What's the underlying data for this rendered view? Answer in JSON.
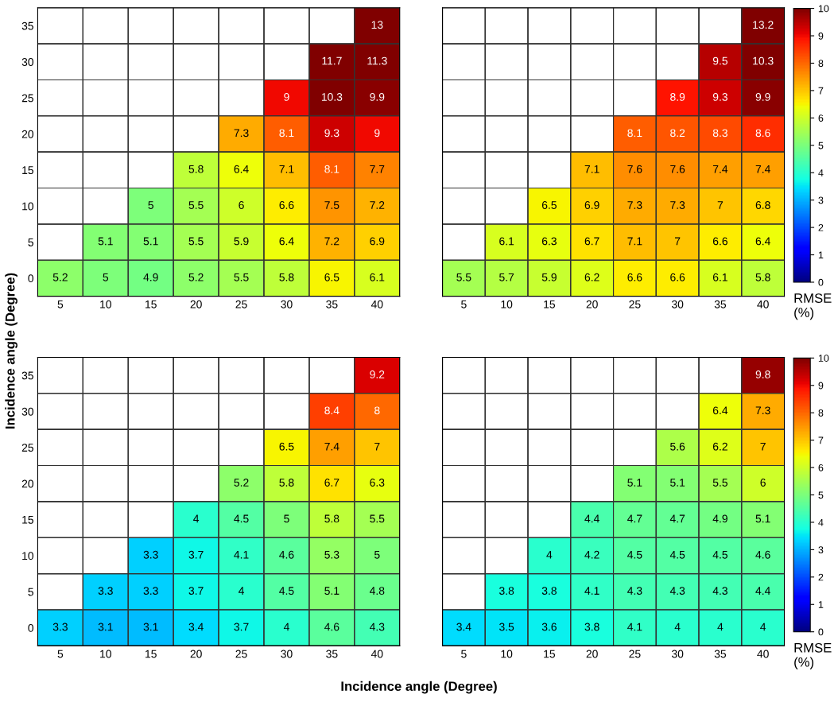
{
  "chart_data": [
    {
      "type": "heatmap",
      "categories": [
        "5",
        "10",
        "15",
        "20",
        "25",
        "30",
        "35",
        "40"
      ],
      "y_categories": [
        "35",
        "30",
        "25",
        "20",
        "15",
        "10",
        "5",
        "0"
      ],
      "cells": [
        [
          null,
          null,
          null,
          null,
          null,
          null,
          null,
          13
        ],
        [
          null,
          null,
          null,
          null,
          null,
          null,
          11.7,
          11.3
        ],
        [
          null,
          null,
          null,
          null,
          null,
          9,
          10.3,
          9.9
        ],
        [
          null,
          null,
          null,
          null,
          7.3,
          8.1,
          9.3,
          9
        ],
        [
          null,
          null,
          null,
          5.8,
          6.4,
          7.1,
          8.1,
          7.7
        ],
        [
          null,
          null,
          5,
          5.5,
          6,
          6.6,
          7.5,
          7.2
        ],
        [
          null,
          5.1,
          5.1,
          5.5,
          5.9,
          6.4,
          7.2,
          6.9
        ],
        [
          5.2,
          5,
          4.9,
          5.2,
          5.5,
          5.8,
          6.5,
          6.1
        ]
      ],
      "data_labels": true
    },
    {
      "type": "heatmap",
      "categories": [
        "5",
        "10",
        "15",
        "20",
        "25",
        "30",
        "35",
        "40"
      ],
      "y_categories": [
        "35",
        "30",
        "25",
        "20",
        "15",
        "10",
        "5",
        "0"
      ],
      "clim": [
        0,
        10
      ],
      "cticks": [
        0,
        1,
        2,
        3,
        4,
        5,
        6,
        7,
        8,
        9,
        10
      ],
      "clabel": "RMSE\n(%)",
      "tick_labels": "x",
      "cells": [
        [
          null,
          null,
          null,
          null,
          null,
          null,
          null,
          13.2
        ],
        [
          null,
          null,
          null,
          null,
          null,
          null,
          9.5,
          10.3
        ],
        [
          null,
          null,
          null,
          null,
          null,
          8.9,
          9.3,
          9.9
        ],
        [
          null,
          null,
          null,
          null,
          8.1,
          8.2,
          8.3,
          8.6
        ],
        [
          null,
          null,
          null,
          7.1,
          7.6,
          7.6,
          7.4,
          7.4
        ],
        [
          null,
          null,
          6.5,
          6.9,
          7.3,
          7.3,
          7,
          6.8
        ],
        [
          null,
          6.1,
          6.3,
          6.7,
          7.1,
          7,
          6.6,
          6.4
        ],
        [
          5.5,
          5.7,
          5.9,
          6.2,
          6.6,
          6.6,
          6.1,
          5.8
        ]
      ],
      "data_labels": true
    },
    {
      "type": "heatmap",
      "categories": [
        "5",
        "10",
        "15",
        "20",
        "25",
        "30",
        "35",
        "40"
      ],
      "y_categories": [
        "35",
        "30",
        "25",
        "20",
        "15",
        "10",
        "5",
        "0"
      ],
      "xlabel": "Incidence angle (Degree)",
      "ylabel": "Incidence angle (Degree)",
      "cells": [
        [
          null,
          null,
          null,
          null,
          null,
          null,
          null,
          9.2
        ],
        [
          null,
          null,
          null,
          null,
          null,
          null,
          8.4,
          8
        ],
        [
          null,
          null,
          null,
          null,
          null,
          6.5,
          7.4,
          7
        ],
        [
          null,
          null,
          null,
          null,
          5.2,
          5.8,
          6.7,
          6.3
        ],
        [
          null,
          null,
          null,
          4,
          4.5,
          5,
          5.8,
          5.5
        ],
        [
          null,
          null,
          3.3,
          3.7,
          4.1,
          4.6,
          5.3,
          5
        ],
        [
          null,
          3.3,
          3.3,
          3.7,
          4,
          4.5,
          5.1,
          4.8
        ],
        [
          3.3,
          3.1,
          3.1,
          3.4,
          3.7,
          4,
          4.6,
          4.3
        ]
      ],
      "data_labels": true
    },
    {
      "type": "heatmap",
      "categories": [
        "5",
        "10",
        "15",
        "20",
        "25",
        "30",
        "35",
        "40"
      ],
      "y_categories": [
        "35",
        "30",
        "25",
        "20",
        "15",
        "10",
        "5",
        "0"
      ],
      "clim": [
        0,
        10
      ],
      "cticks": [
        0,
        1,
        2,
        3,
        4,
        5,
        6,
        7,
        8,
        9,
        10
      ],
      "clabel": "RMSE\n(%)",
      "tick_labels": "x",
      "cells": [
        [
          null,
          null,
          null,
          null,
          null,
          null,
          null,
          9.8
        ],
        [
          null,
          null,
          null,
          null,
          null,
          null,
          6.4,
          7.3
        ],
        [
          null,
          null,
          null,
          null,
          null,
          5.6,
          6.2,
          7
        ],
        [
          null,
          null,
          null,
          null,
          5.1,
          5.1,
          5.5,
          6
        ],
        [
          null,
          null,
          null,
          4.4,
          4.7,
          4.7,
          4.9,
          5.1
        ],
        [
          null,
          null,
          4,
          4.2,
          4.5,
          4.5,
          4.5,
          4.6
        ],
        [
          null,
          3.8,
          3.8,
          4.1,
          4.3,
          4.3,
          4.3,
          4.4
        ],
        [
          3.4,
          3.5,
          3.6,
          3.8,
          4.1,
          4,
          4,
          4
        ]
      ],
      "data_labels": true
    }
  ]
}
